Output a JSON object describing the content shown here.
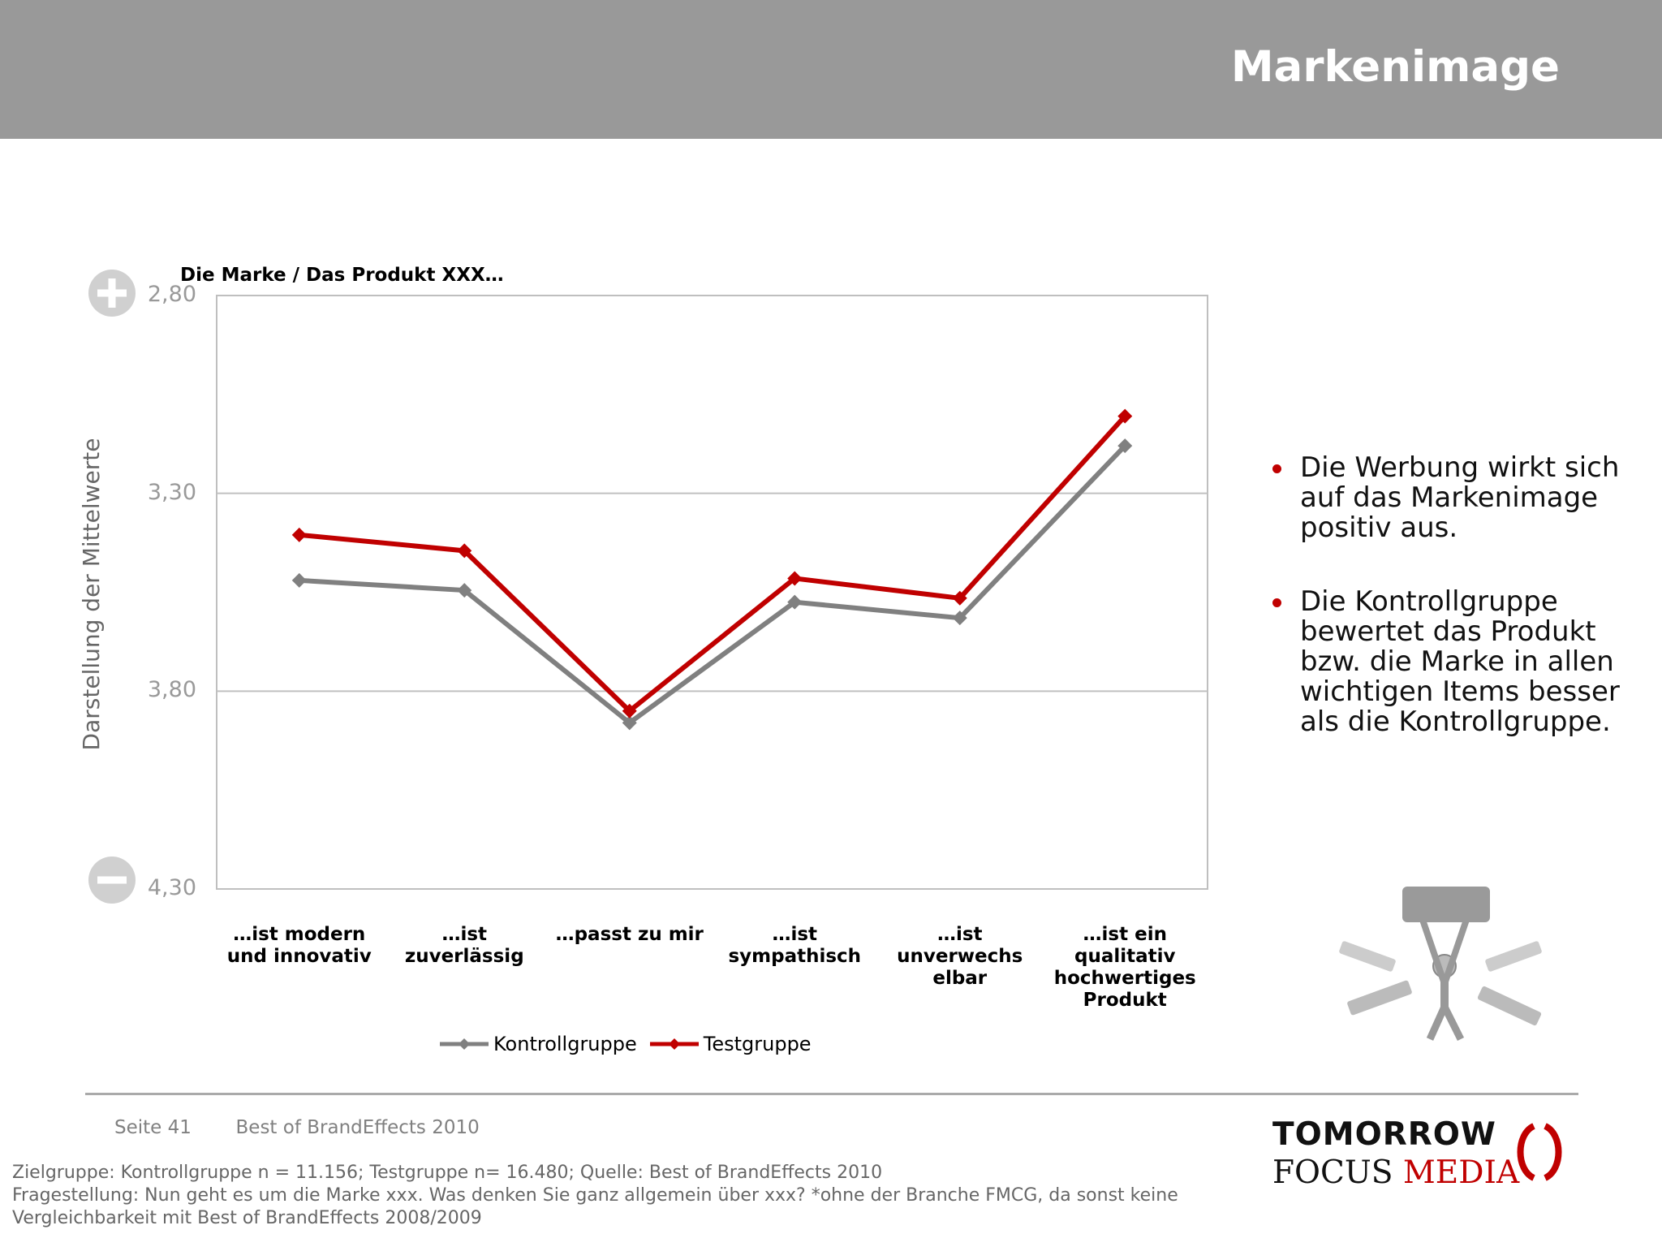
{
  "header": {
    "title": "Markenimage"
  },
  "chart_data": {
    "type": "line",
    "subtitle": "Die Marke / Das Produkt  XXX…",
    "ylabel": "Darstellung der Mittelwerte",
    "y_axis_inverted": true,
    "ylim": [
      2.8,
      4.3
    ],
    "y_ticks": [
      "2,80",
      "3,30",
      "3,80",
      "4,30"
    ],
    "grid": true,
    "categories": [
      "…ist modern und innovativ",
      "…ist zuverlässig",
      "…passt zu mir",
      "…ist sympathisch",
      "…ist unverwechs elbar",
      "…ist ein qualitativ hochwertiges Produkt"
    ],
    "series": [
      {
        "name": "Kontrollgruppe",
        "color": "#808080",
        "values": [
          3.52,
          3.545,
          3.88,
          3.575,
          3.615,
          3.18
        ]
      },
      {
        "name": "Testgruppe",
        "color": "#c00000",
        "values": [
          3.405,
          3.445,
          3.85,
          3.515,
          3.565,
          3.105
        ]
      }
    ],
    "legend_position": "bottom"
  },
  "bullets": [
    "Die Werbung wirkt sich auf das Markenimage positiv aus.",
    "Die Kontrollgruppe bewertet das Produkt bzw. die Marke in allen wichtigen Items besser als die Kontrollgruppe."
  ],
  "footer": {
    "page": "Seite 41",
    "report": "Best of BrandEffects 2010",
    "source_lines": [
      "Zielgruppe: Kontrollgruppe n = 11.156; Testgruppe n= 16.480; Quelle: Best of BrandEffects 2010",
      "Fragestellung: Nun geht es um die Marke xxx. Was denken Sie ganz allgemein über xxx? *ohne der Branche FMCG, da sonst keine",
      "Vergleichbarkeit mit Best of BrandEffects 2008/2009"
    ]
  },
  "logo": {
    "line1": "TOMORROW",
    "line2a": "FOCUS",
    "line2b": "MEDIA"
  },
  "icons": {
    "plus": "plus-circle-icon",
    "minus": "minus-circle-icon",
    "brand_figure": "brand-figure-icon",
    "logo_mark": "tomorrow-focus-brackets-icon"
  }
}
